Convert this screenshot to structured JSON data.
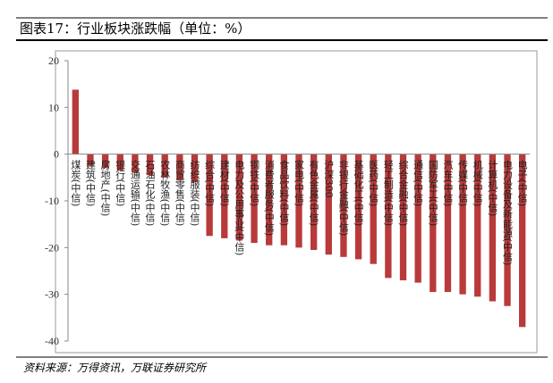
{
  "chart_data": {
    "type": "bar",
    "title": "图表17：行业板块涨跌幅（单位：%）",
    "source": "资料来源：万得资讯，万联证券研究所",
    "categories": [
      "煤炭(中信)",
      "建筑(中信)",
      "房地产(中信)",
      "银行(中信)",
      "交通运输(中信)",
      "石油石化(中信)",
      "农林牧渔(中信)",
      "商贸零售(中信)",
      "纺织服装(中信)",
      "综合(中信)",
      "建材(中信)",
      "电力及公用事业(中信)",
      "钢铁(中信)",
      "消费者服务(中信)",
      "食品饮料(中信)",
      "家电(中信)",
      "有色金属(中信)",
      "沪深300",
      "非银行金融(中信)",
      "基础化工(中信)",
      "医药(中信)",
      "轻工制造(中信)",
      "综合金融(中信)",
      "通信(中信)",
      "国防军工(中信)",
      "汽车(中信)",
      "传媒(中信)",
      "机械(中信)",
      "计算机(中信)",
      "电力设备及新能源(中信)",
      "电子(中信)"
    ],
    "values": [
      13.8,
      -2.5,
      -3,
      -3.5,
      -4,
      -4.5,
      -5,
      -5.5,
      -6,
      -17.5,
      -18,
      -18.5,
      -19,
      -19.5,
      -19.5,
      -20,
      -20.5,
      -21.5,
      -22,
      -22.5,
      -23.5,
      -26.5,
      -27,
      -27.5,
      -29.5,
      -29.5,
      -30,
      -30.5,
      -31.5,
      -32.5,
      -37
    ],
    "color": "#b93a3a",
    "ylim": [
      -40,
      20
    ],
    "yticks": [
      -40,
      -30,
      -20,
      -10,
      0,
      10,
      20
    ],
    "grid": false
  }
}
